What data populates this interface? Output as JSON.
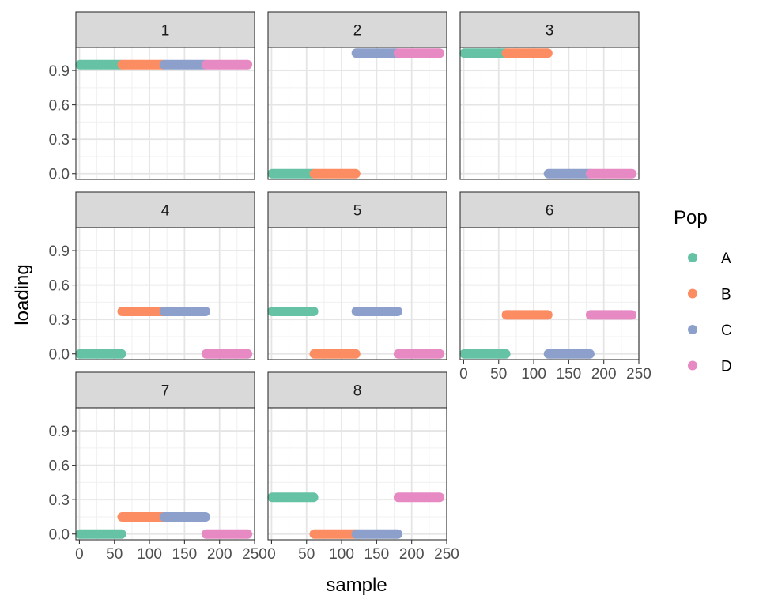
{
  "chart_data": {
    "type": "scatter",
    "xlabel": "sample",
    "ylabel": "loading",
    "xlim": [
      -5,
      250
    ],
    "ylim": [
      -0.05,
      1.1
    ],
    "x_ticks": [
      0,
      50,
      100,
      150,
      200,
      250
    ],
    "y_ticks": [
      0.0,
      0.3,
      0.6,
      0.9
    ],
    "y_tick_labels": [
      "0.0",
      "0.3",
      "0.6",
      "0.9"
    ],
    "grid": true,
    "legend": {
      "title": "Pop",
      "position": "right",
      "entries": [
        {
          "label": "A",
          "color": "#66C2A5"
        },
        {
          "label": "B",
          "color": "#FC8D62"
        },
        {
          "label": "C",
          "color": "#8DA0CB"
        },
        {
          "label": "D",
          "color": "#E78AC3"
        }
      ]
    },
    "populations": [
      {
        "name": "A",
        "x_range": [
          1,
          60
        ]
      },
      {
        "name": "B",
        "x_range": [
          61,
          120
        ]
      },
      {
        "name": "C",
        "x_range": [
          121,
          180
        ]
      },
      {
        "name": "D",
        "x_range": [
          181,
          240
        ]
      }
    ],
    "facets": [
      {
        "label": "1",
        "loadings": [
          0.95,
          0.95,
          0.95,
          0.95
        ]
      },
      {
        "label": "2",
        "loadings": [
          0.0,
          0.0,
          1.05,
          1.05
        ]
      },
      {
        "label": "3",
        "loadings": [
          1.05,
          1.05,
          0.0,
          0.0
        ]
      },
      {
        "label": "4",
        "loadings": [
          0.0,
          0.37,
          0.37,
          0.0
        ]
      },
      {
        "label": "5",
        "loadings": [
          0.37,
          0.0,
          0.37,
          0.0
        ]
      },
      {
        "label": "6",
        "loadings": [
          0.0,
          0.34,
          0.0,
          0.34
        ]
      },
      {
        "label": "7",
        "loadings": [
          0.0,
          0.15,
          0.15,
          0.0
        ]
      },
      {
        "label": "8",
        "loadings": [
          0.32,
          0.0,
          0.0,
          0.32
        ]
      }
    ]
  }
}
